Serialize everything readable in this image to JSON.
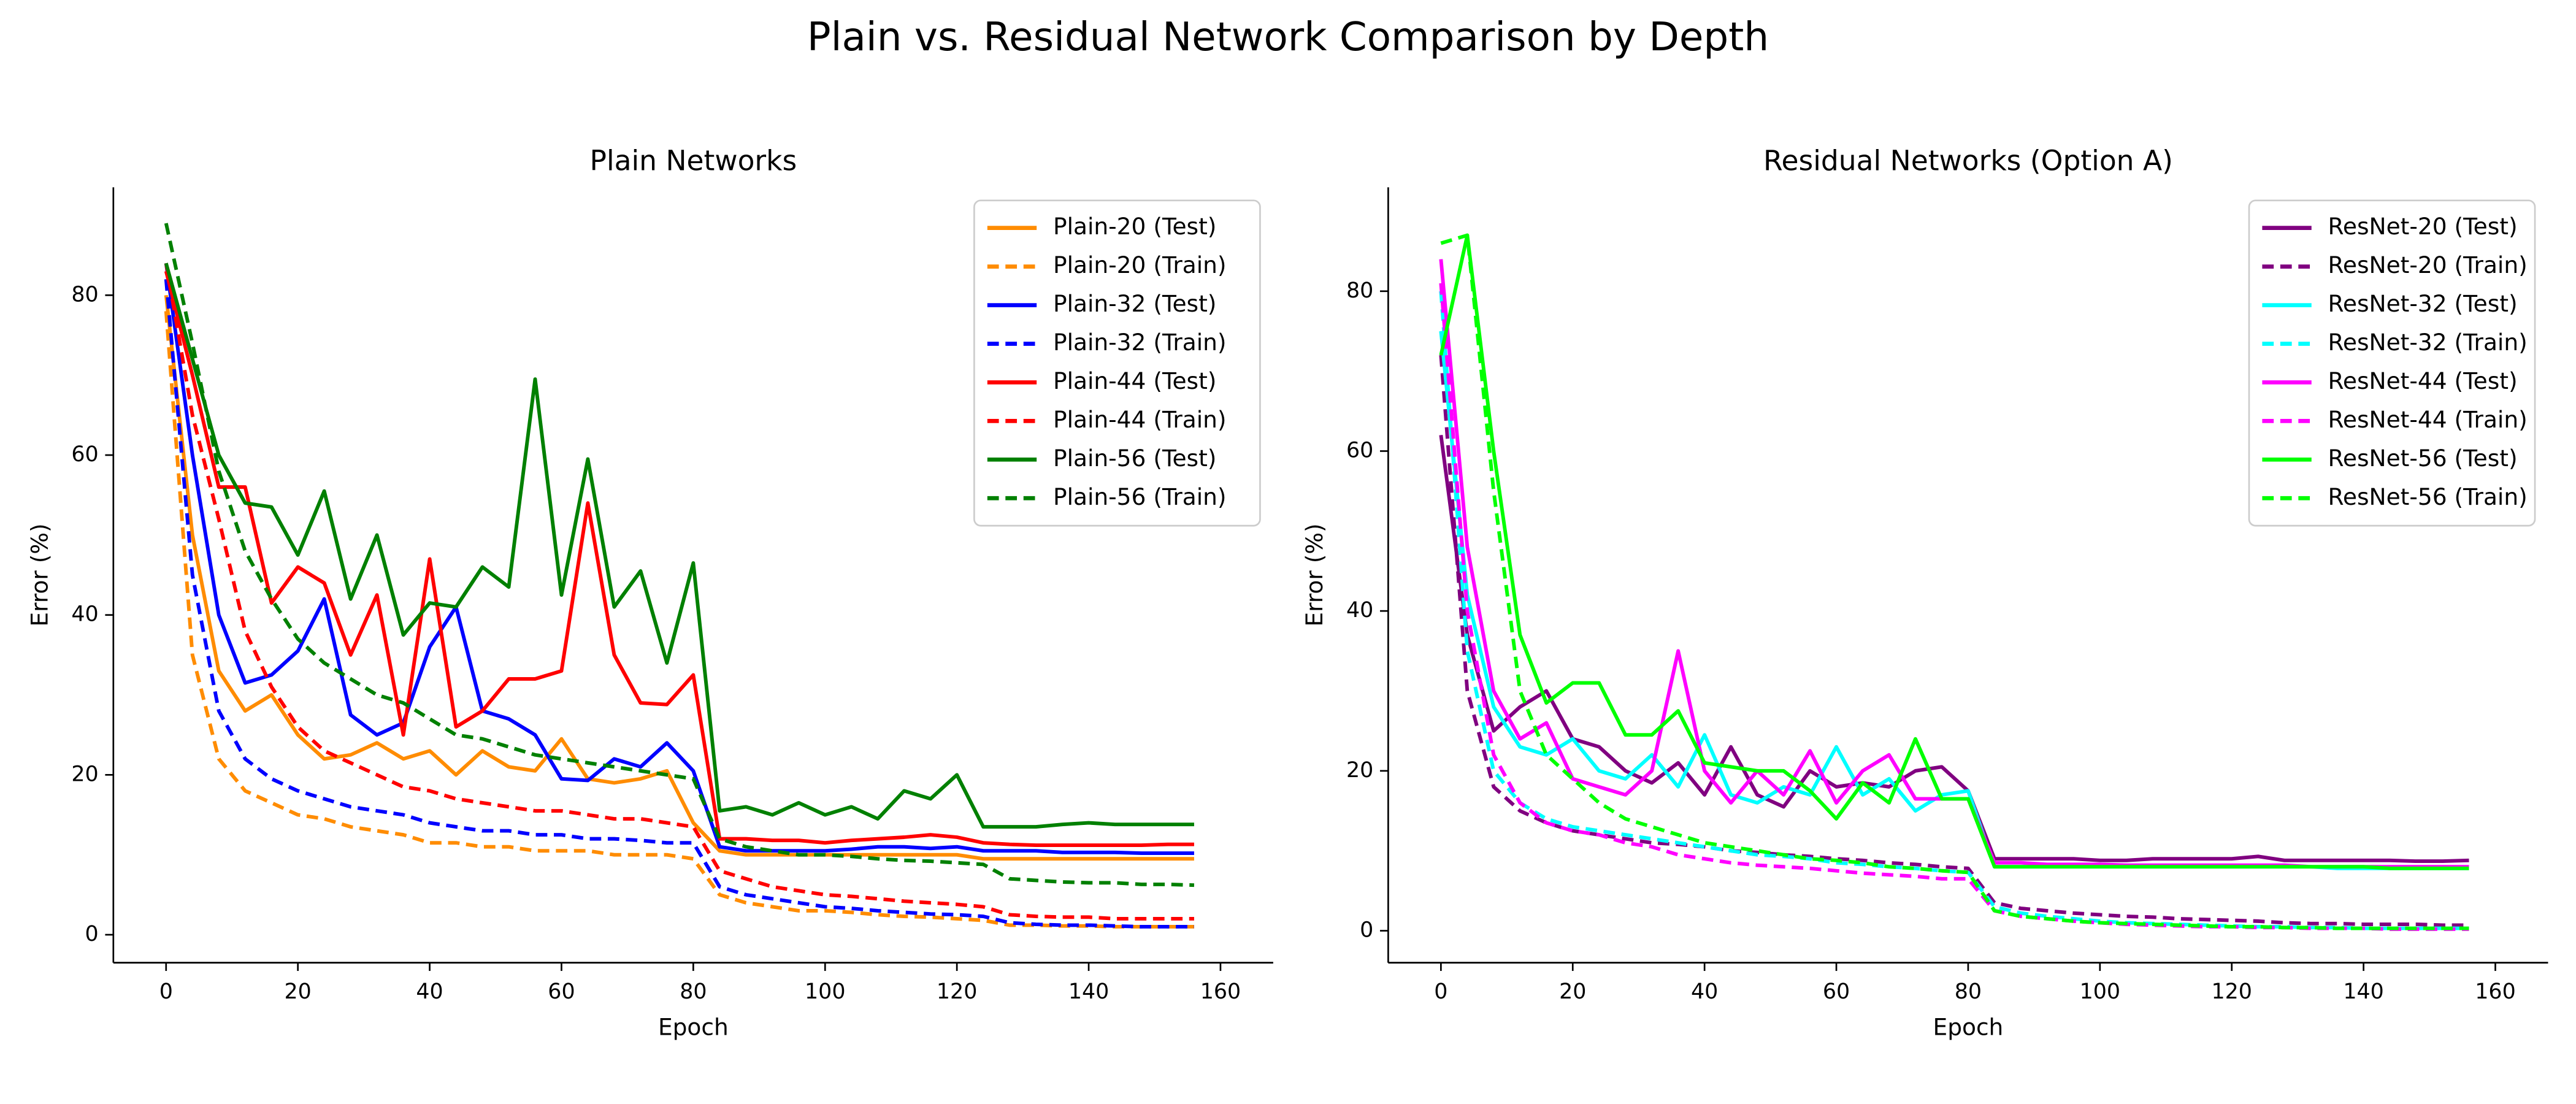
{
  "title": "Plain vs. Residual Network Comparison by Depth",
  "chart_data": [
    {
      "type": "line",
      "title": "Plain Networks",
      "x_label": "Epoch",
      "y_label": "Error (%)",
      "xlim": [
        -8,
        168
      ],
      "ylim": [
        -3.5,
        93.5
      ],
      "xticks": [
        0,
        20,
        40,
        60,
        80,
        100,
        120,
        140,
        160
      ],
      "yticks": [
        0,
        20,
        40,
        60,
        80
      ],
      "legend": "upper right",
      "spines": "left-bottom",
      "x": [
        0,
        4,
        8,
        12,
        16,
        20,
        24,
        28,
        32,
        36,
        40,
        44,
        48,
        52,
        56,
        60,
        64,
        68,
        72,
        76,
        80,
        84,
        88,
        92,
        96,
        100,
        104,
        108,
        112,
        116,
        120,
        124,
        128,
        132,
        136,
        140,
        144,
        148,
        152,
        156
      ],
      "series": [
        {
          "name": "Plain-20 (Test)",
          "color": "#ff8c00",
          "linestyle": "solid",
          "values": [
            80,
            50,
            33,
            28,
            30,
            25,
            22,
            22.5,
            24,
            22,
            23,
            20,
            23,
            21,
            20.5,
            24.5,
            19.5,
            19,
            19.5,
            20.5,
            14,
            10.5,
            10,
            10,
            10,
            10,
            10,
            10,
            10,
            10,
            10,
            9.5,
            9.5,
            9.5,
            9.5,
            9.5,
            9.5,
            9.5,
            9.5,
            9.5
          ]
        },
        {
          "name": "Plain-20 (Train)",
          "color": "#ff8c00",
          "linestyle": "dashed",
          "values": [
            78,
            35,
            22,
            18,
            16.5,
            15,
            14.5,
            13.5,
            13,
            12.5,
            11.5,
            11.5,
            11,
            11,
            10.5,
            10.5,
            10.5,
            10,
            10,
            10,
            9.5,
            5,
            4,
            3.5,
            3,
            3,
            2.8,
            2.5,
            2.3,
            2.2,
            2,
            1.8,
            1.2,
            1.2,
            1.1,
            1.1,
            1,
            1,
            1,
            1
          ]
        },
        {
          "name": "Plain-32 (Test)",
          "color": "#0000ff",
          "linestyle": "solid",
          "values": [
            84,
            60,
            40,
            31.5,
            32.5,
            35.5,
            42,
            27.5,
            25,
            26.5,
            36,
            41,
            28,
            27,
            25,
            19.5,
            19.3,
            22,
            21,
            24,
            20.5,
            11,
            10.5,
            10.5,
            10.5,
            10.5,
            10.7,
            11,
            11,
            10.8,
            11,
            10.5,
            10.5,
            10.5,
            10.3,
            10.3,
            10.3,
            10.2,
            10.2,
            10.2
          ]
        },
        {
          "name": "Plain-32 (Train)",
          "color": "#0000ff",
          "linestyle": "dashed",
          "values": [
            82,
            45,
            28,
            22,
            19.5,
            18,
            17,
            16,
            15.5,
            15,
            14,
            13.5,
            13,
            13,
            12.5,
            12.5,
            12,
            12,
            11.8,
            11.5,
            11.5,
            6,
            5,
            4.5,
            4,
            3.5,
            3.3,
            3,
            2.8,
            2.6,
            2.5,
            2.3,
            1.5,
            1.3,
            1.2,
            1.2,
            1.1,
            1,
            1,
            1
          ]
        },
        {
          "name": "Plain-44 (Test)",
          "color": "#ff0000",
          "linestyle": "solid",
          "values": [
            83,
            70,
            56,
            56,
            41.5,
            46,
            44,
            35,
            42.5,
            25,
            47,
            26,
            28,
            32,
            32,
            33,
            54,
            35,
            29,
            28.8,
            32.5,
            12,
            12,
            11.8,
            11.8,
            11.5,
            11.8,
            12,
            12.2,
            12.5,
            12.2,
            11.5,
            11.3,
            11.2,
            11.2,
            11.2,
            11.2,
            11.2,
            11.3,
            11.3
          ]
        },
        {
          "name": "Plain-44 (Train)",
          "color": "#ff0000",
          "linestyle": "dashed",
          "values": [
            84,
            65,
            52,
            38,
            31,
            26,
            23,
            21.5,
            20,
            18.5,
            18,
            17,
            16.5,
            16,
            15.5,
            15.5,
            15,
            14.5,
            14.5,
            14,
            13.5,
            8,
            7,
            6,
            5.5,
            5,
            4.8,
            4.5,
            4.2,
            4,
            3.8,
            3.5,
            2.5,
            2.3,
            2.2,
            2.2,
            2,
            2,
            2,
            2
          ]
        },
        {
          "name": "Plain-56 (Test)",
          "color": "#008000",
          "linestyle": "solid",
          "values": [
            84,
            72,
            60,
            54,
            53.5,
            47.5,
            55.5,
            42,
            50,
            37.5,
            41.5,
            41,
            46,
            43.5,
            69.5,
            42.5,
            59.5,
            41,
            45.5,
            34,
            46.5,
            15.5,
            16,
            15,
            16.5,
            15,
            16,
            14.5,
            18,
            17,
            20,
            13.5,
            13.5,
            13.5,
            13.8,
            14,
            13.8,
            13.8,
            13.8,
            13.8
          ]
        },
        {
          "name": "Plain-56 (Train)",
          "color": "#008000",
          "linestyle": "dashed",
          "values": [
            89,
            74,
            58,
            48,
            42,
            37,
            34,
            32,
            30,
            29,
            27,
            25,
            24.5,
            23.5,
            22.5,
            22,
            21.5,
            21,
            20.5,
            20,
            19.5,
            12,
            11,
            10.5,
            10,
            10,
            9.8,
            9.5,
            9.3,
            9.2,
            9,
            8.8,
            7,
            6.8,
            6.6,
            6.5,
            6.5,
            6.3,
            6.3,
            6.2
          ]
        }
      ]
    },
    {
      "type": "line",
      "title": "Residual Networks (Option A)",
      "x_label": "Epoch",
      "y_label": "Error (%)",
      "xlim": [
        -8,
        168
      ],
      "ylim": [
        -4,
        93
      ],
      "xticks": [
        0,
        20,
        40,
        60,
        80,
        100,
        120,
        140,
        160
      ],
      "yticks": [
        0,
        20,
        40,
        60,
        80
      ],
      "legend": "upper right",
      "spines": "left-bottom",
      "x": [
        0,
        4,
        8,
        12,
        16,
        20,
        24,
        28,
        32,
        36,
        40,
        44,
        48,
        52,
        56,
        60,
        64,
        68,
        72,
        76,
        80,
        84,
        88,
        92,
        96,
        100,
        104,
        108,
        112,
        116,
        120,
        124,
        128,
        132,
        136,
        140,
        144,
        148,
        152,
        156
      ],
      "series": [
        {
          "name": "ResNet-20 (Test)",
          "color": "#800080",
          "linestyle": "solid",
          "values": [
            62,
            37,
            25,
            28,
            30,
            24,
            23,
            20,
            18.5,
            21,
            17,
            23,
            17,
            15.5,
            20,
            18,
            18.5,
            18,
            20,
            20.5,
            17.5,
            9,
            9,
            9,
            9,
            8.8,
            8.8,
            9,
            9,
            9,
            9,
            9.3,
            8.8,
            8.8,
            8.8,
            8.8,
            8.8,
            8.7,
            8.7,
            8.8
          ]
        },
        {
          "name": "ResNet-20 (Train)",
          "color": "#800080",
          "linestyle": "dashed",
          "values": [
            72,
            30,
            18,
            15,
            13.5,
            12.5,
            12,
            11.5,
            11,
            10.8,
            10.5,
            10,
            9.8,
            9.5,
            9.3,
            9,
            8.8,
            8.5,
            8.3,
            8,
            7.8,
            3.5,
            2.8,
            2.5,
            2.2,
            2,
            1.8,
            1.7,
            1.5,
            1.4,
            1.3,
            1.2,
            1,
            0.9,
            0.9,
            0.8,
            0.8,
            0.8,
            0.7,
            0.7
          ]
        },
        {
          "name": "ResNet-32 (Test)",
          "color": "#00ffff",
          "linestyle": "solid",
          "values": [
            75,
            42,
            28,
            23,
            22,
            24,
            20,
            19,
            22,
            18,
            24.5,
            17,
            16,
            18,
            17,
            23,
            17,
            19,
            15,
            17,
            17.5,
            8,
            8,
            8,
            8,
            8,
            8,
            8,
            8,
            8,
            8,
            8,
            8,
            8,
            7.8,
            7.8,
            7.8,
            7.8,
            7.8,
            7.8
          ]
        },
        {
          "name": "ResNet-32 (Train)",
          "color": "#00ffff",
          "linestyle": "dashed",
          "values": [
            80,
            35,
            20,
            16,
            14,
            13,
            12.5,
            12,
            11.5,
            11,
            10.5,
            10,
            9.5,
            9.3,
            9,
            8.5,
            8.3,
            8,
            7.8,
            7.5,
            7.3,
            3,
            2.2,
            1.8,
            1.5,
            1.2,
            1,
            0.9,
            0.8,
            0.7,
            0.6,
            0.5,
            0.5,
            0.4,
            0.4,
            0.3,
            0.3,
            0.3,
            0.3,
            0.3
          ]
        },
        {
          "name": "ResNet-44 (Test)",
          "color": "#ff00ff",
          "linestyle": "solid",
          "values": [
            84,
            48,
            30,
            24,
            26,
            19,
            18,
            17,
            20,
            35,
            20,
            16,
            20,
            17,
            22.5,
            16,
            20,
            22,
            16.5,
            16.5,
            16.5,
            8.5,
            8.5,
            8.3,
            8.3,
            8.3,
            8.2,
            8.2,
            8.2,
            8.2,
            8.2,
            8.2,
            8.2,
            8,
            8,
            8,
            8,
            8,
            8,
            8
          ]
        },
        {
          "name": "ResNet-44 (Train)",
          "color": "#ff00ff",
          "linestyle": "dashed",
          "values": [
            81,
            40,
            22,
            16,
            13.5,
            12.5,
            12,
            11,
            10.5,
            9.5,
            9,
            8.5,
            8.2,
            8,
            7.8,
            7.5,
            7.2,
            7,
            6.8,
            6.5,
            6.5,
            2.5,
            1.8,
            1.5,
            1.2,
            1,
            0.8,
            0.7,
            0.6,
            0.5,
            0.5,
            0.4,
            0.4,
            0.3,
            0.3,
            0.3,
            0.2,
            0.2,
            0.2,
            0.2
          ]
        },
        {
          "name": "ResNet-56 (Test)",
          "color": "#00ff00",
          "linestyle": "solid",
          "values": [
            72,
            87,
            60,
            37,
            28.5,
            31,
            31,
            24.5,
            24.5,
            27.5,
            21,
            20.5,
            20,
            20,
            17.5,
            14,
            18.5,
            16,
            24,
            16.5,
            16.5,
            8,
            8,
            8,
            8,
            8,
            8,
            8,
            8,
            8,
            8,
            8,
            8,
            8,
            8,
            8,
            7.8,
            7.8,
            7.8,
            7.8
          ]
        },
        {
          "name": "ResNet-56 (Train)",
          "color": "#00ff00",
          "linestyle": "dashed",
          "values": [
            86,
            87,
            55,
            30,
            22,
            19,
            16,
            14,
            13,
            12,
            11,
            10.5,
            10,
            9.5,
            9,
            8.8,
            8.5,
            8,
            7.8,
            7.5,
            7.3,
            2.5,
            1.8,
            1.5,
            1.2,
            1,
            0.9,
            0.8,
            0.7,
            0.6,
            0.5,
            0.5,
            0.4,
            0.4,
            0.3,
            0.3,
            0.3,
            0.3,
            0.3,
            0.3
          ]
        }
      ]
    }
  ]
}
